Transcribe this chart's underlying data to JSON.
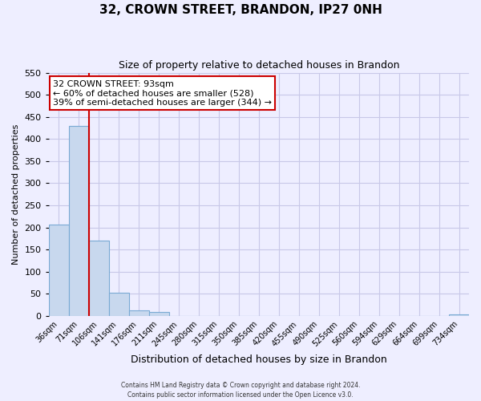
{
  "title": "32, CROWN STREET, BRANDON, IP27 0NH",
  "subtitle": "Size of property relative to detached houses in Brandon",
  "xlabel": "Distribution of detached houses by size in Brandon",
  "ylabel": "Number of detached properties",
  "bar_labels": [
    "36sqm",
    "71sqm",
    "106sqm",
    "141sqm",
    "176sqm",
    "211sqm",
    "245sqm",
    "280sqm",
    "315sqm",
    "350sqm",
    "385sqm",
    "420sqm",
    "455sqm",
    "490sqm",
    "525sqm",
    "560sqm",
    "594sqm",
    "629sqm",
    "664sqm",
    "699sqm",
    "734sqm"
  ],
  "bar_values": [
    206,
    430,
    170,
    52,
    13,
    9,
    0,
    0,
    0,
    0,
    0,
    0,
    0,
    0,
    0,
    0,
    0,
    0,
    0,
    0,
    3
  ],
  "bar_fill_color": "#c8d8ee",
  "bar_edge_color": "#7aaad4",
  "grid_color": "#c8c8e8",
  "background_color": "#eeeeff",
  "vline_x_idx": 1,
  "vline_color": "#cc0000",
  "annotation_title": "32 CROWN STREET: 93sqm",
  "annotation_line1": "← 60% of detached houses are smaller (528)",
  "annotation_line2": "39% of semi-detached houses are larger (344) →",
  "annotation_box_color": "#ffffff",
  "annotation_box_edge": "#cc0000",
  "ylim": [
    0,
    550
  ],
  "yticks": [
    0,
    50,
    100,
    150,
    200,
    250,
    300,
    350,
    400,
    450,
    500,
    550
  ],
  "footer1": "Contains HM Land Registry data © Crown copyright and database right 2024.",
  "footer2": "Contains public sector information licensed under the Open Licence v3.0."
}
